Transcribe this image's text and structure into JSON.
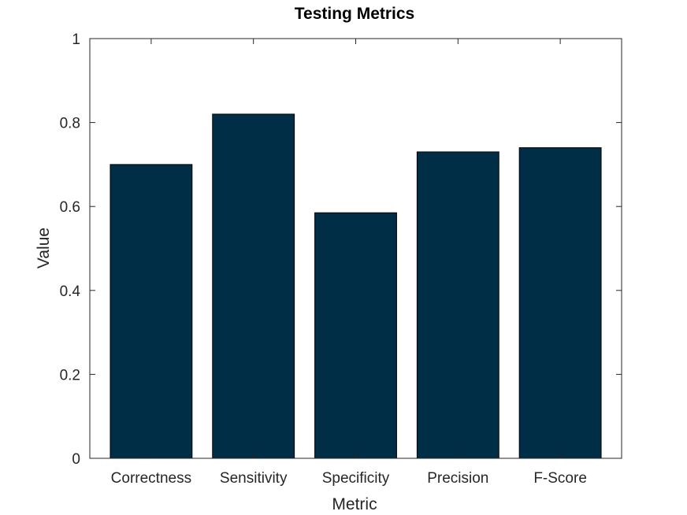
{
  "chart_data": {
    "type": "bar",
    "title": "Testing Metrics",
    "xlabel": "Metric",
    "ylabel": "Value",
    "categories": [
      "Correctness",
      "Sensitivity",
      "Specificity",
      "Precision",
      "F-Score"
    ],
    "values": [
      0.7,
      0.82,
      0.585,
      0.73,
      0.74
    ],
    "ylim": [
      0,
      1
    ],
    "yticks": [
      "0",
      "0.2",
      "0.4",
      "0.6",
      "0.8",
      "1"
    ],
    "grid": false,
    "legend": "none",
    "colors": {
      "bar": "#002e47",
      "bar_edge": "#000000",
      "axis": "#262626"
    }
  }
}
